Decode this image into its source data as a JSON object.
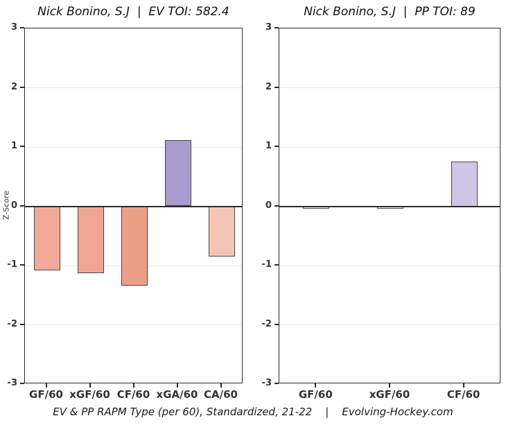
{
  "figure": {
    "caption": "EV & PP RAPM Type (per 60), Standardized, 21-22    |    Evolving-Hockey.com",
    "background": "#ffffff"
  },
  "chart_data": [
    {
      "type": "bar",
      "title": "Nick Bonino, S.J  |  EV TOI: 582.4",
      "ylabel": "Z-Score",
      "xlabel": "",
      "categories": [
        "GF/60",
        "xGF/60",
        "CF/60",
        "xGA/60",
        "CA/60"
      ],
      "values": [
        -1.08,
        -1.13,
        -1.34,
        1.12,
        -0.85
      ],
      "bar_colors": [
        "#f1aa99",
        "#f0a695",
        "#eb9f84",
        "#a89bce",
        "#f5c5b3"
      ],
      "ylim": [
        -3,
        3
      ],
      "yticks": [
        3,
        2,
        1,
        0,
        -1,
        -2,
        -3
      ],
      "grid": true,
      "legend": "none",
      "zero_line": true
    },
    {
      "type": "bar",
      "title": "Nick Bonino, S.J  |  PP TOI: 89",
      "ylabel": "",
      "xlabel": "",
      "categories": [
        "GF/60",
        "xGF/60",
        "CF/60"
      ],
      "values": [
        -0.04,
        -0.04,
        0.75
      ],
      "bar_colors": [
        "#fdfbfa",
        "#fdfbfa",
        "#cfc5e6"
      ],
      "ylim": [
        -3,
        3
      ],
      "yticks": [
        3,
        2,
        1,
        0,
        -1,
        -2,
        -3
      ],
      "grid": true,
      "legend": "none",
      "zero_line": true
    }
  ]
}
